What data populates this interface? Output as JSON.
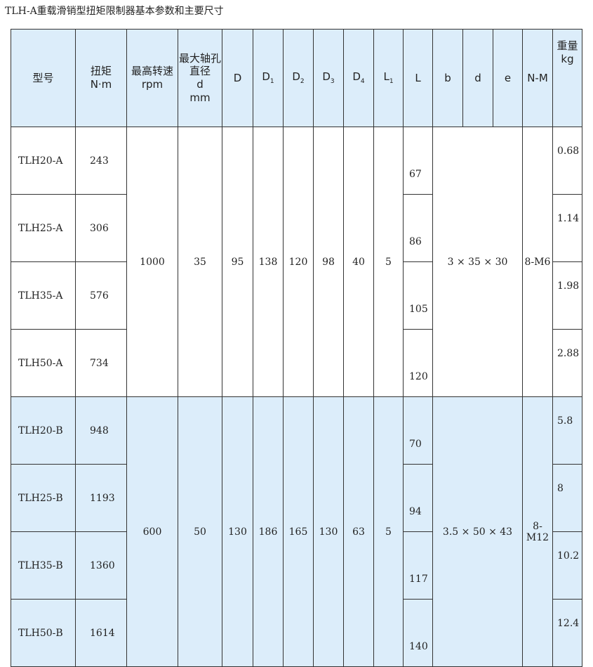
{
  "title": "TLH-A重载滑销型扭矩限制器基本参数和主要尺寸",
  "headers": {
    "model": "型号",
    "torque": "扭矩",
    "torque_unit": "N·m",
    "speed": "最高转速",
    "speed_unit": "rpm",
    "bore": "最大轴孔直径",
    "bore_sym": "d",
    "bore_unit": "mm",
    "D": "D",
    "D1": "D",
    "D1s": "1",
    "D2": "D",
    "D2s": "2",
    "D3": "D",
    "D3s": "3",
    "D4": "D",
    "D4s": "4",
    "L1": "L",
    "L1s": "1",
    "L": "L",
    "b": "b",
    "d": "d",
    "e": "e",
    "NM": "N-M",
    "weight": "重量",
    "weight_unit": "kg"
  },
  "groups": [
    {
      "speed": "1000",
      "bore": "35",
      "D": "95",
      "D1": "138",
      "D2": "120",
      "D3": "98",
      "D4": "40",
      "L1": "5",
      "bde": "3 × 35 × 30",
      "NM": "8-M6",
      "rows": [
        {
          "model": "TLH20-A",
          "torque": "243",
          "L": "67",
          "weight": "0.68"
        },
        {
          "model": "TLH25-A",
          "torque": "306",
          "L": "86",
          "weight": "1.14"
        },
        {
          "model": "TLH35-A",
          "torque": "576",
          "L": "105",
          "weight": "1.98"
        },
        {
          "model": "TLH50-A",
          "torque": "734",
          "L": "120",
          "weight": "2.88"
        }
      ]
    },
    {
      "speed": "600",
      "bore": "50",
      "D": "130",
      "D1": "186",
      "D2": "165",
      "D3": "130",
      "D4": "63",
      "L1": "5",
      "bde": "3.5 × 50 × 43",
      "NM": "8-M12",
      "rows": [
        {
          "model": "TLH20-B",
          "torque": "948",
          "L": "70",
          "weight": "5.8"
        },
        {
          "model": "TLH25-B",
          "torque": "1193",
          "L": "94",
          "weight": "8"
        },
        {
          "model": "TLH35-B",
          "torque": "1360",
          "L": "117",
          "weight": "10.2"
        },
        {
          "model": "TLH50-B",
          "torque": "1614",
          "L": "140",
          "weight": "12.4"
        }
      ]
    }
  ]
}
